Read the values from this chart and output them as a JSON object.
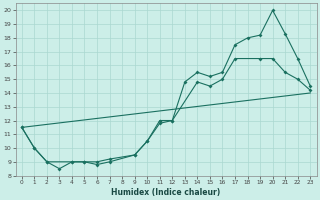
{
  "xlabel": "Humidex (Indice chaleur)",
  "bg_color": "#cceee8",
  "grid_color": "#aad8d0",
  "line_color": "#1a7060",
  "xlim": [
    -0.5,
    23.5
  ],
  "ylim": [
    8,
    20.5
  ],
  "xticks": [
    0,
    1,
    2,
    3,
    4,
    5,
    6,
    7,
    8,
    9,
    10,
    11,
    12,
    13,
    14,
    15,
    16,
    17,
    18,
    19,
    20,
    21,
    22,
    23
  ],
  "yticks": [
    8,
    9,
    10,
    11,
    12,
    13,
    14,
    15,
    16,
    17,
    18,
    19,
    20
  ],
  "line1_x": [
    0,
    1,
    2,
    3,
    4,
    5,
    6,
    7,
    9,
    10,
    11,
    12,
    13,
    14,
    15,
    16,
    17,
    18,
    19,
    20,
    21,
    22,
    23
  ],
  "line1_y": [
    11.5,
    10.0,
    9.0,
    8.5,
    9.0,
    9.0,
    9.0,
    9.2,
    9.5,
    10.5,
    11.8,
    12.0,
    14.8,
    15.5,
    15.2,
    15.5,
    17.5,
    18.0,
    18.2,
    20.0,
    18.3,
    16.5,
    14.5
  ],
  "line2_x": [
    0,
    1,
    2,
    4,
    5,
    6,
    7,
    9,
    10,
    11,
    12,
    14,
    15,
    16,
    17,
    19,
    20,
    21,
    22,
    23
  ],
  "line2_y": [
    11.5,
    10.0,
    9.0,
    9.0,
    9.0,
    8.8,
    9.0,
    9.5,
    10.5,
    12.0,
    12.0,
    14.8,
    14.5,
    15.0,
    16.5,
    16.5,
    16.5,
    15.5,
    15.0,
    14.2
  ],
  "line3_x": [
    0,
    23
  ],
  "line3_y": [
    11.5,
    14.0
  ],
  "marker1_x": [
    0,
    1,
    2,
    3,
    4,
    5,
    6,
    7,
    9,
    10,
    11,
    12,
    13,
    14,
    15,
    16,
    17,
    18,
    19,
    20,
    21,
    22,
    23
  ],
  "marker1_y": [
    11.5,
    10.0,
    9.0,
    8.5,
    9.0,
    9.0,
    9.0,
    9.2,
    9.5,
    10.5,
    11.8,
    12.0,
    14.8,
    15.5,
    15.2,
    15.5,
    17.5,
    18.0,
    18.2,
    20.0,
    18.3,
    16.5,
    14.5
  ],
  "marker2_x": [
    0,
    1,
    2,
    4,
    5,
    6,
    7,
    9,
    10,
    11,
    12,
    14,
    15,
    16,
    17,
    19,
    20,
    21,
    22,
    23
  ],
  "marker2_y": [
    11.5,
    10.0,
    9.0,
    9.0,
    9.0,
    8.8,
    9.0,
    9.5,
    10.5,
    12.0,
    12.0,
    14.8,
    14.5,
    15.0,
    16.5,
    16.5,
    16.5,
    15.5,
    15.0,
    14.2
  ]
}
